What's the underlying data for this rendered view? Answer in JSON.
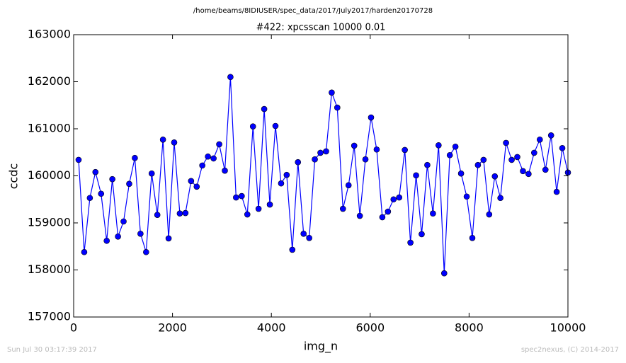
{
  "chart_data": {
    "type": "line",
    "suptitle": "/home/beams/8IDIUSER/spec_data/2017/July2017/harden20170728",
    "title": "#422: xpcsscan 10000 0.01",
    "xlabel": "img_n",
    "ylabel": "ccdc",
    "footer_left": "Sun Jul 30 03:17:39 2017",
    "footer_right": "spec2nexus, (C) 2014-2017",
    "xlim": [
      0,
      10000
    ],
    "xticks": [
      0,
      2000,
      4000,
      6000,
      8000,
      10000
    ],
    "ylim": [
      157000,
      163000
    ],
    "yticks": [
      157000,
      158000,
      159000,
      160000,
      161000,
      162000,
      163000
    ],
    "x": [
      100,
      214,
      328,
      441,
      555,
      669,
      783,
      897,
      1010,
      1124,
      1238,
      1352,
      1466,
      1579,
      1693,
      1807,
      1921,
      2034,
      2148,
      2262,
      2376,
      2490,
      2603,
      2717,
      2831,
      2945,
      3059,
      3172,
      3286,
      3400,
      3514,
      3628,
      3741,
      3855,
      3969,
      4083,
      4197,
      4310,
      4424,
      4538,
      4652,
      4766,
      4879,
      4993,
      5107,
      5221,
      5334,
      5448,
      5562,
      5676,
      5790,
      5903,
      6017,
      6131,
      6245,
      6359,
      6472,
      6586,
      6700,
      6814,
      6928,
      7041,
      7155,
      7269,
      7383,
      7497,
      7610,
      7724,
      7838,
      7952,
      8066,
      8179,
      8293,
      8407,
      8521,
      8634,
      8748,
      8862,
      8976,
      9090,
      9203,
      9317,
      9431,
      9545,
      9659,
      9772,
      9886,
      10000
    ],
    "series": [
      {
        "color": "#0000ff",
        "values": [
          160340,
          158380,
          159530,
          160080,
          159620,
          158620,
          159930,
          158710,
          159030,
          159830,
          160380,
          158770,
          158380,
          160050,
          159170,
          160770,
          158670,
          160710,
          159200,
          159210,
          159890,
          159770,
          160220,
          160410,
          160370,
          160670,
          160110,
          162100,
          159540,
          159570,
          159180,
          161050,
          159300,
          161420,
          159390,
          161060,
          159840,
          160020,
          158430,
          160290,
          158770,
          158680,
          160350,
          160490,
          160520,
          161770,
          161450,
          159300,
          159800,
          160640,
          159150,
          160350,
          161240,
          160560,
          159120,
          159240,
          159500,
          159540,
          160550,
          158580,
          160010,
          158760,
          160230,
          159200,
          160650,
          157930,
          160440,
          160620,
          160050,
          159560,
          158680,
          160230,
          160340,
          159180,
          159990,
          159530,
          160700,
          160340,
          160400,
          160100,
          160040,
          160490,
          160770,
          160130,
          160860,
          159660,
          160590,
          160070
        ]
      }
    ]
  }
}
